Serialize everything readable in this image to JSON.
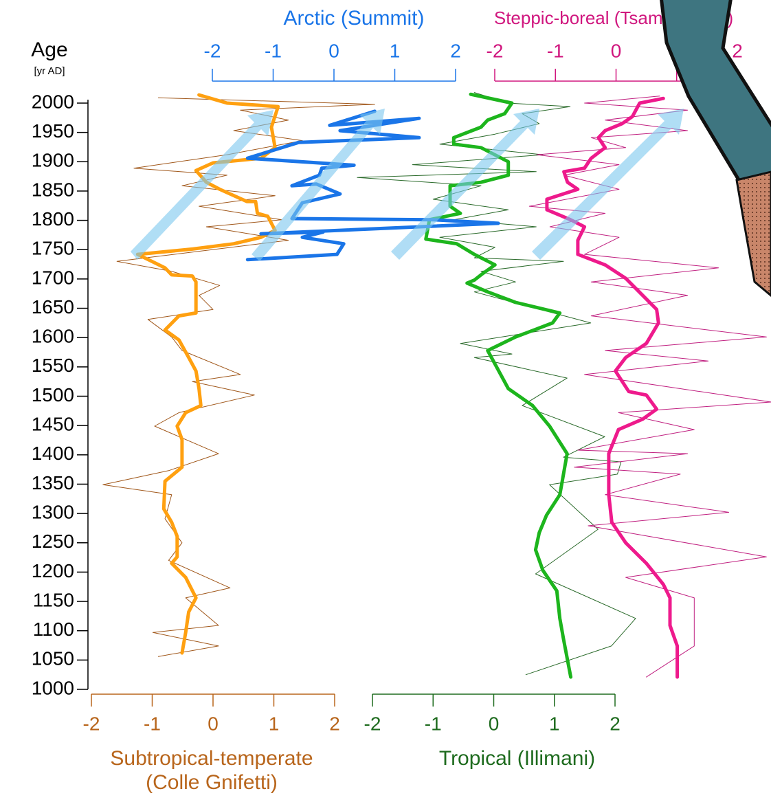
{
  "chart_data": {
    "type": "line",
    "y_label": [
      "Age",
      "[yr AD]"
    ],
    "ylim": [
      1000,
      2000
    ],
    "yticks": [
      1000,
      1050,
      1100,
      1150,
      1200,
      1250,
      1300,
      1350,
      1400,
      1450,
      1500,
      1550,
      1600,
      1650,
      1700,
      1750,
      1800,
      1850,
      1900,
      1950,
      2000
    ],
    "panels": [
      {
        "label": [
          "Subtropical-temperate",
          "(Colle Gnifetti)"
        ],
        "axis_position": "bottom",
        "color": "#b8651b",
        "xlim": [
          -2,
          2
        ],
        "xticks": [
          -2,
          -1,
          0,
          1,
          2
        ],
        "series": [
          {
            "color": "#a0571a",
            "linewidth": 1,
            "ages": [
              2009,
              1998,
              1988,
              1971,
              1953,
              1936,
              1912,
              1889,
              1877,
              1859,
              1842,
              1824,
              1801,
              1789,
              1766,
              1730,
              1713,
              1689,
              1672,
              1648,
              1631,
              1601,
              1578,
              1537,
              1525,
              1502,
              1472,
              1449,
              1402,
              1373,
              1349,
              1332,
              1291,
              1250,
              1220,
              1173,
              1156,
              1109,
              1097,
              1074,
              1056
            ],
            "values": [
              -0.9,
              2.66,
              0.45,
              1.24,
              0.34,
              1.47,
              0.23,
              -1.3,
              0.23,
              -0.51,
              1.02,
              -0.23,
              1.13,
              -0.11,
              1.24,
              -1.58,
              -0.68,
              0.11,
              -0.23,
              0,
              -1.07,
              -0.68,
              -0.51,
              0.45,
              -0.34,
              0.68,
              -0.56,
              -0.96,
              0.09,
              -0.73,
              -1.81,
              -0.68,
              -0.79,
              -0.51,
              -0.73,
              0.28,
              -0.45,
              0.09,
              -0.99,
              0.09,
              -0.9
            ]
          },
          {
            "color": "#ffa010",
            "linewidth": 5,
            "ages": [
              2014,
              2000,
              1994,
              1959,
              1924,
              1906,
              1898,
              1885,
              1865,
              1853,
              1832,
              1832,
              1812,
              1807,
              1783,
              1771,
              1760,
              1751,
              1742,
              1719,
              1707,
              1705,
              1695,
              1642,
              1637,
              1613,
              1596,
              1566,
              1543,
              1513,
              1484,
              1472,
              1449,
              1426,
              1379,
              1355,
              1308,
              1285,
              1261,
              1226,
              1215,
              1191,
              1156,
              1132,
              1097,
              1062
            ],
            "values": [
              -0.23,
              0.23,
              1.07,
              0.96,
              1.02,
              0.79,
              0,
              -0.28,
              -0.11,
              0.11,
              0.56,
              0.7,
              0.73,
              0.9,
              1.02,
              0.79,
              0.34,
              -0.34,
              -1.24,
              -0.79,
              -0.68,
              -0.34,
              -0.28,
              -0.28,
              -0.56,
              -0.79,
              -0.56,
              -0.4,
              -0.28,
              -0.23,
              -0.2,
              -0.45,
              -0.59,
              -0.51,
              -0.51,
              -0.79,
              -0.81,
              -0.68,
              -0.59,
              -0.59,
              -0.68,
              -0.45,
              -0.28,
              -0.4,
              -0.45,
              -0.51
            ]
          }
        ]
      },
      {
        "label": [
          "Tropical (Illimani)"
        ],
        "axis_position": "bottom",
        "color": "#1e6b1e",
        "xlim": [
          -2,
          2
        ],
        "xticks": [
          -2,
          -1,
          0,
          1,
          2
        ],
        "series": [
          {
            "color": "#2a6a2a",
            "linewidth": 1,
            "ages": [
              2018,
              2000,
              1994,
              1982,
              1965,
              1947,
              1930,
              1912,
              1895,
              1883,
              1873,
              1859,
              1836,
              1818,
              1801,
              1789,
              1771,
              1754,
              1736,
              1730,
              1713,
              1695,
              1678,
              1625,
              1590,
              1572,
              1566,
              1531,
              1484,
              1431,
              1396,
              1388,
              1367,
              1349,
              1273,
              1197,
              1121,
              1074,
              1025
            ],
            "values": [
              -0.32,
              0.24,
              1.26,
              0.47,
              0.75,
              0.02,
              -0.89,
              0.81,
              -1.34,
              0.7,
              -2.25,
              -0.21,
              -1.0,
              0.24,
              -0.66,
              0.7,
              -0.89,
              0.02,
              -0.32,
              1.15,
              -0.21,
              0.36,
              -0.32,
              1.6,
              -0.55,
              0.3,
              -0.32,
              1.21,
              0.47,
              1.83,
              1.15,
              2.1,
              2.04,
              0.92,
              1.72,
              0.69,
              2.34,
              1.94,
              0.53
            ]
          },
          {
            "color": "#1db51d",
            "linewidth": 5,
            "ages": [
              2015,
              2000,
              1982,
              1971,
              1959,
              1941,
              1930,
              1924,
              1900,
              1877,
              1865,
              1859,
              1824,
              1812,
              1801,
              1768,
              1760,
              1742,
              1724,
              1707,
              1698,
              1693,
              1678,
              1660,
              1642,
              1625,
              1601,
              1578,
              1555,
              1513,
              1484,
              1449,
              1402,
              1355,
              1332,
              1297,
              1267,
              1238,
              1203,
              1168,
              1121,
              1086,
              1021
            ],
            "values": [
              -0.38,
              0.3,
              0.18,
              -0.1,
              -0.21,
              -0.66,
              -0.66,
              -0.21,
              0.24,
              0.24,
              -0.21,
              -0.72,
              -0.72,
              -0.55,
              -1.06,
              -1.12,
              -0.61,
              -0.32,
              0.02,
              -0.21,
              -0.32,
              -0.44,
              -0.1,
              0.36,
              1.09,
              0.97,
              0.36,
              -0.1,
              0.02,
              0.24,
              0.64,
              0.92,
              1.21,
              1.13,
              1.09,
              0.87,
              0.75,
              0.69,
              0.81,
              1.04,
              1.09,
              1.15,
              1.27
            ]
          }
        ]
      },
      {
        "label": [
          "Arctic (Summit)"
        ],
        "axis_position": "top",
        "color": "#1a75e8",
        "xlim": [
          -2,
          2
        ],
        "xticks": [
          -2,
          -1,
          0,
          1,
          2
        ],
        "series": [
          {
            "color": "#1a75e8",
            "linewidth": 5,
            "ages": [
              1733,
              1742,
              1760,
              1771,
              1780,
              1777,
              1795,
              1801,
              1803,
              1830,
              1845,
              1862,
              1859,
              1877,
              1889,
              1894,
              1906,
              1933,
              1941,
              1953,
              1974,
              1962,
              1986
            ],
            "values": [
              -1.42,
              0.05,
              0.16,
              -0.52,
              -0.18,
              -1.2,
              2.7,
              1.63,
              -0.69,
              -0.52,
              0.1,
              -0.29,
              -0.69,
              -0.24,
              -0.2,
              0.33,
              -1.42,
              -0.58,
              1.4,
              0.1,
              1.4,
              -0.07,
              0.67
            ]
          }
        ]
      },
      {
        "label": [
          "Steppic-boreal (Tsambagarav)"
        ],
        "axis_position": "top",
        "color": "#d0167e",
        "xlim": [
          -2,
          2
        ],
        "xticks": [
          -2,
          -1,
          0,
          1,
          2
        ],
        "series": [
          {
            "color": "#c02080",
            "linewidth": 1,
            "ages": [
              2012,
              2000,
              1988,
              1971,
              1953,
              1941,
              1924,
              1912,
              1895,
              1877,
              1853,
              1824,
              1812,
              1789,
              1771,
              1742,
              1719,
              1695,
              1672,
              1637,
              1601,
              1578,
              1560,
              1537,
              1490,
              1472,
              1443,
              1408,
              1402,
              1379,
              1367,
              1332,
              1302,
              1279,
              1226,
              1191,
              1156,
              1074,
              1021
            ],
            "values": [
              0.72,
              -0.52,
              1.18,
              -0.18,
              1.18,
              -0.41,
              0.16,
              -1.31,
              0.05,
              -0.86,
              0.05,
              -1.43,
              -0.18,
              -1.09,
              0.05,
              -0.52,
              1.69,
              -0.41,
              1.18,
              -0.41,
              2.48,
              -0.18,
              1.52,
              -0.52,
              2.56,
              0.04,
              1.29,
              -0.63,
              1.18,
              -0.69,
              1.06,
              -0.18,
              1.86,
              -0.46,
              2.48,
              0.16,
              1.29,
              1.29,
              0.5
            ]
          },
          {
            "color": "#ee1a8c",
            "linewidth": 5,
            "ages": [
              2008,
              2000,
              1977,
              1965,
              1953,
              1941,
              1924,
              1906,
              1889,
              1883,
              1865,
              1853,
              1836,
              1818,
              1801,
              1789,
              1766,
              1742,
              1724,
              1701,
              1672,
              1648,
              1625,
              1590,
              1566,
              1543,
              1508,
              1502,
              1478,
              1461,
              1443,
              1402,
              1332,
              1285,
              1250,
              1215,
              1179,
              1156,
              1109,
              1074,
              1021
            ],
            "values": [
              0.78,
              0.39,
              0.27,
              0.1,
              -0.18,
              -0.29,
              -0.18,
              -0.41,
              -0.52,
              -0.86,
              -0.8,
              -0.63,
              -1.14,
              -1.14,
              -0.75,
              -0.52,
              -0.63,
              -0.63,
              -0.18,
              0.16,
              0.44,
              0.67,
              0.7,
              0.5,
              0.16,
              -0.01,
              0.21,
              0.5,
              0.67,
              0.44,
              0.04,
              -0.12,
              -0.12,
              -0.07,
              0.16,
              0.5,
              0.78,
              0.89,
              0.89,
              1.01,
              1.01
            ]
          }
        ]
      }
    ]
  }
}
